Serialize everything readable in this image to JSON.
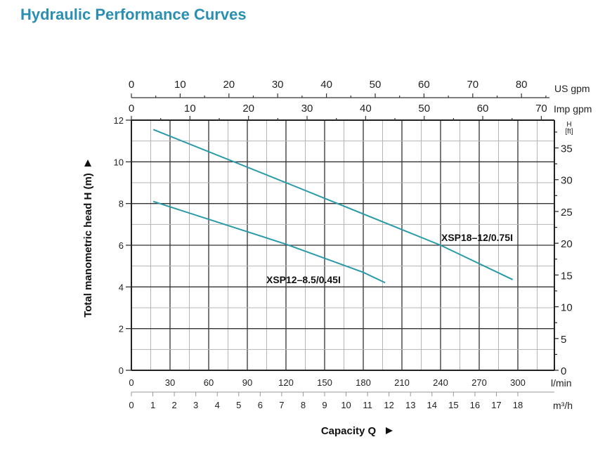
{
  "title": "Hydraulic Performance Curves",
  "colors": {
    "title": "#2b8fb3",
    "curve": "#2a9aa8",
    "grid_major": "#333333",
    "grid_minor": "#b5b5b5"
  },
  "chart_data": {
    "type": "line",
    "title": "Hydraulic Performance Curves",
    "xlabel": "Capacity Q",
    "ylabel": "Total manometric head H (m)",
    "xlim": [
      0,
      328
    ],
    "ylim": [
      0,
      12
    ],
    "grid": true,
    "x_axis_lmin": {
      "unit": "l/min",
      "ticks": [
        0,
        30,
        60,
        90,
        120,
        150,
        180,
        210,
        240,
        270,
        300
      ]
    },
    "x_axis_m3h": {
      "unit": "m³/h",
      "ticks": [
        0,
        1,
        2,
        3,
        4,
        5,
        6,
        7,
        8,
        9,
        10,
        11,
        12,
        13,
        14,
        15,
        16,
        17,
        18
      ]
    },
    "x_axis_us_gpm": {
      "unit": "US gpm",
      "ticks": [
        0,
        10,
        20,
        30,
        40,
        50,
        60,
        70,
        80
      ]
    },
    "x_axis_imp_gpm": {
      "unit": "Imp gpm",
      "ticks": [
        0,
        10,
        20,
        30,
        40,
        50,
        60,
        70
      ]
    },
    "y_axis_m": {
      "ticks": [
        0,
        2,
        4,
        6,
        8,
        10,
        12
      ]
    },
    "y_axis_ft": {
      "unit_top": "H",
      "unit_bottom": "[ft]",
      "ticks": [
        0,
        5,
        10,
        15,
        20,
        25,
        30,
        35
      ]
    },
    "series": [
      {
        "name": "XSP18-12/0.75I",
        "label": "XSP18–12/0.75I",
        "x": [
          17,
          120,
          240,
          296
        ],
        "y": [
          11.55,
          9.0,
          6.0,
          4.35
        ]
      },
      {
        "name": "XSP12-8.5/0.45I",
        "label": "XSP12–8.5/0.45I",
        "x": [
          17,
          120,
          180,
          197
        ],
        "y": [
          8.1,
          6.05,
          4.7,
          4.2
        ]
      }
    ]
  }
}
